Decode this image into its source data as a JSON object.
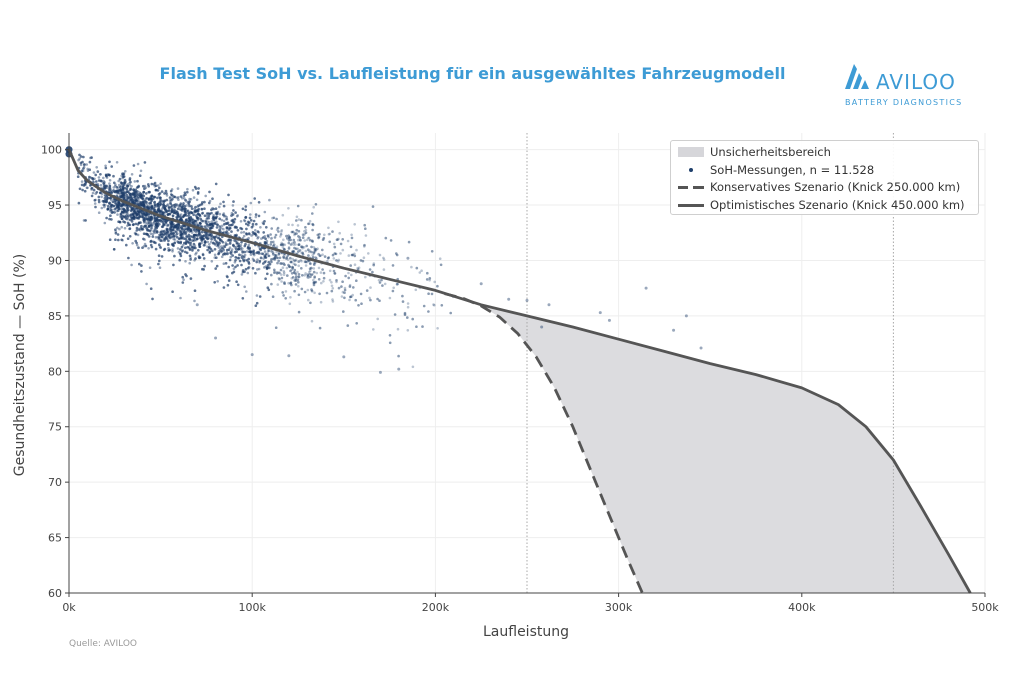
{
  "title": "Flash Test SoH vs. Laufleistung für ein ausgewähltes Fahrzeugmodell",
  "logo": {
    "word": "AVILOO",
    "subtitle": "BATTERY DIAGNOSTICS",
    "icon": "aviloo-logo-icon"
  },
  "source": "Quelle: AVILOO",
  "colors": {
    "title": "#3d9bd5",
    "points": "#1f3f6b",
    "curve": "#555555",
    "band": "#dcdcdf",
    "grid": "#eeeeee",
    "vline": "#a8a8a8"
  },
  "chart_data": {
    "type": "scatter",
    "xlabel": "Laufleistung",
    "ylabel": "Gesundheitszustand — SoH (%)",
    "xlim": [
      0,
      500000
    ],
    "ylim": [
      60,
      101.5
    ],
    "x_ticks": [
      0,
      100000,
      200000,
      300000,
      400000,
      500000
    ],
    "x_tick_labels": [
      "0k",
      "100k",
      "200k",
      "300k",
      "400k",
      "500k"
    ],
    "y_ticks": [
      60,
      65,
      70,
      75,
      80,
      85,
      90,
      95,
      100
    ],
    "y_tick_labels": [
      "60",
      "65",
      "70",
      "75",
      "80",
      "85",
      "90",
      "95",
      "100"
    ],
    "grid": true,
    "vertical_reference_lines": [
      250000,
      450000
    ],
    "legend_position": "top-right",
    "legend": [
      {
        "label": "Unsicherheitsbereich",
        "symbol": "band"
      },
      {
        "label": "SoH-Messungen, n = 11.528",
        "symbol": "dot"
      },
      {
        "label": "Konservatives Szenario (Knick 250.000 km)",
        "symbol": "dashed"
      },
      {
        "label": "Optimistisches Szenario (Knick 450.000 km)",
        "symbol": "solid"
      }
    ],
    "series": [
      {
        "name": "Optimistisches Szenario (Knick 450.000 km)",
        "style": "solid",
        "x": [
          0,
          5000,
          10000,
          20000,
          30000,
          50000,
          75000,
          100000,
          125000,
          150000,
          175000,
          200000,
          225000,
          250000,
          275000,
          300000,
          325000,
          350000,
          375000,
          400000,
          420000,
          435000,
          450000,
          465000,
          480000,
          492000
        ],
        "y": [
          100,
          98.1,
          97.2,
          96.1,
          95.3,
          94.0,
          92.7,
          91.6,
          90.4,
          89.3,
          88.3,
          87.3,
          86.0,
          85.0,
          84.0,
          82.9,
          81.8,
          80.7,
          79.7,
          78.5,
          77.0,
          75.0,
          72.0,
          67.8,
          63.5,
          60.0
        ]
      },
      {
        "name": "Konservatives Szenario (Knick 250.000 km)",
        "style": "dashed",
        "x": [
          205000,
          215000,
          225000,
          235000,
          245000,
          255000,
          265000,
          275000,
          285000,
          295000,
          305000,
          313000
        ],
        "y": [
          87.0,
          86.6,
          85.9,
          84.9,
          83.4,
          81.3,
          78.5,
          75.0,
          71.0,
          67.0,
          63.0,
          60.0
        ]
      },
      {
        "name": "SoH-Messungen, n = 11.528",
        "style": "scatter",
        "count": 11528,
        "note": "cloud along the main curve, densest 10k–120k km",
        "x": [
          0,
          0,
          30000,
          50000,
          70000,
          80000,
          100000,
          120000,
          150000,
          170000,
          180000,
          185000,
          225000,
          240000,
          250000,
          258000,
          262000,
          290000,
          295000,
          315000,
          330000,
          337000,
          345000
        ],
        "y": [
          100,
          99.6,
          95.8,
          94.0,
          86.0,
          83.0,
          81.5,
          81.4,
          81.3,
          79.9,
          80.2,
          90.2,
          87.9,
          86.5,
          86.4,
          84.0,
          86.0,
          85.3,
          84.6,
          87.5,
          83.7,
          85.0,
          82.1
        ]
      }
    ]
  }
}
